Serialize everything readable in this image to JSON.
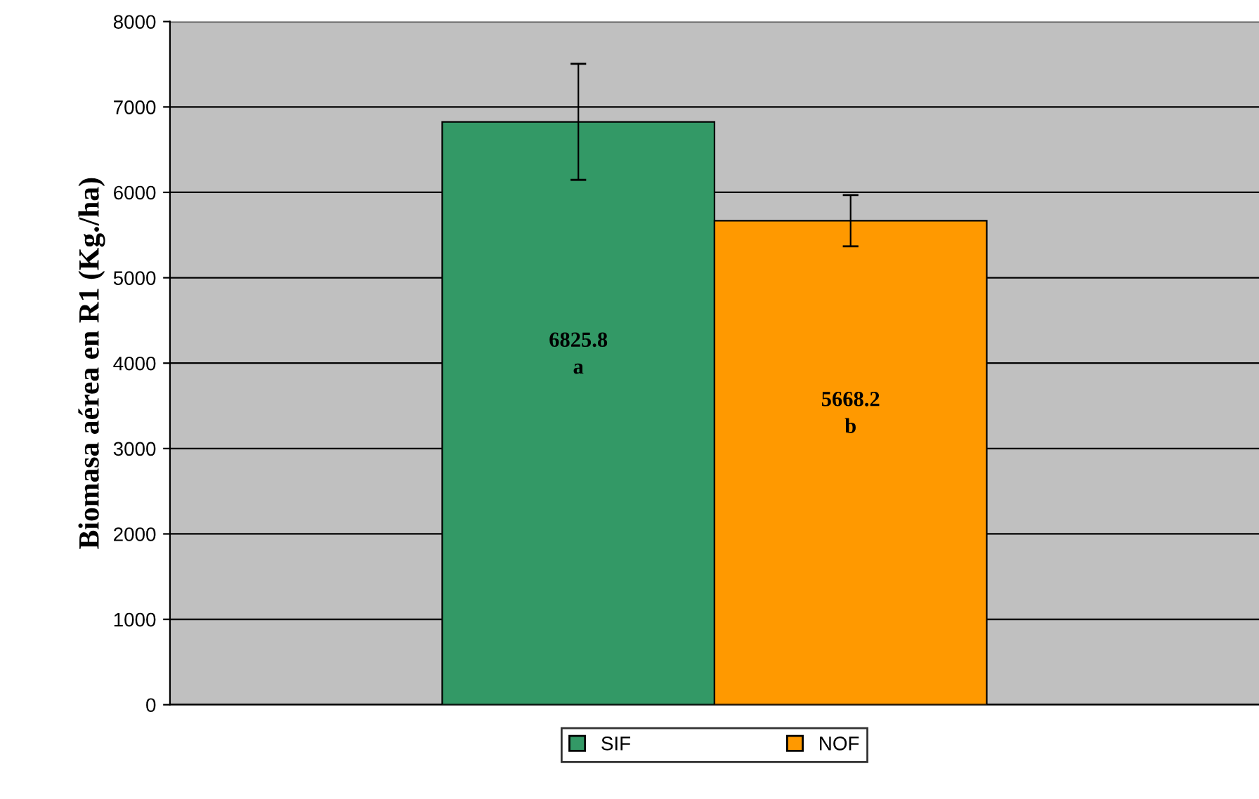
{
  "chart_data": {
    "type": "bar",
    "ylabel": "Biomasa aérea en R1 (Kg./ha)",
    "categories": [
      null
    ],
    "series": [
      {
        "name": "SIF",
        "color": "#339966",
        "values": [
          6825.8
        ],
        "errors": [
          680
        ],
        "value_labels": [
          "6825.8\na"
        ]
      },
      {
        "name": "NOF",
        "color": "#ff9900",
        "values": [
          5668.2
        ],
        "errors": [
          300
        ],
        "value_labels": [
          "5668.2\nb"
        ]
      }
    ],
    "ylim": [
      0,
      8000
    ],
    "yticks": [
      0,
      1000,
      2000,
      3000,
      4000,
      5000,
      6000,
      7000,
      8000
    ],
    "grid": "y",
    "legend": "bottom"
  }
}
